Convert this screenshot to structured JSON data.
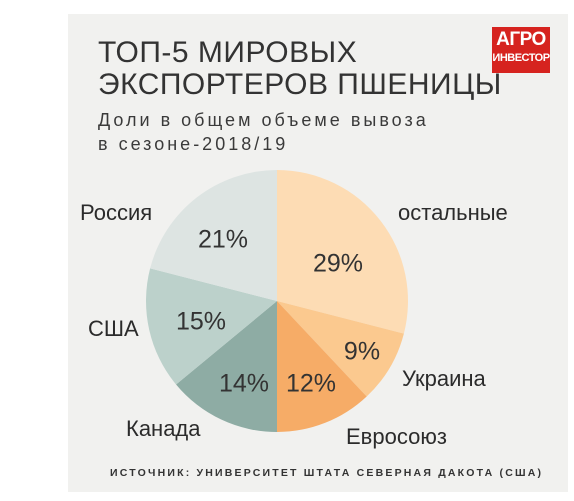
{
  "logo": {
    "line1": "АГРО",
    "line2": "ИНВЕСТОР"
  },
  "chart_data": {
    "type": "pie",
    "title_line1": "ТОП-5 МИРОВЫХ",
    "title_line2": "ЭКСПОРТЕРОВ ПШЕНИЦЫ",
    "subtitle_line1": "Доли в общем объеме вывоза",
    "subtitle_line2": "в сезоне-2018/19",
    "slices": [
      {
        "label": "остальные",
        "value": 29,
        "value_label": "29%",
        "color": "#fddcb4"
      },
      {
        "label": "Украина",
        "value": 9,
        "value_label": "9%",
        "color": "#fbc98f"
      },
      {
        "label": "Евросоюз",
        "value": 12,
        "value_label": "12%",
        "color": "#f6ac67"
      },
      {
        "label": "Канада",
        "value": 14,
        "value_label": "14%",
        "color": "#8eaca4"
      },
      {
        "label": "США",
        "value": 15,
        "value_label": "15%",
        "color": "#bcd1cb"
      },
      {
        "label": "Россия",
        "value": 21,
        "value_label": "21%",
        "color": "#dde4e2"
      }
    ],
    "source": "ИСТОЧНИК: УНИВЕРСИТЕТ ШТАТА СЕВЕРНАЯ ДАКОТА (США)"
  }
}
